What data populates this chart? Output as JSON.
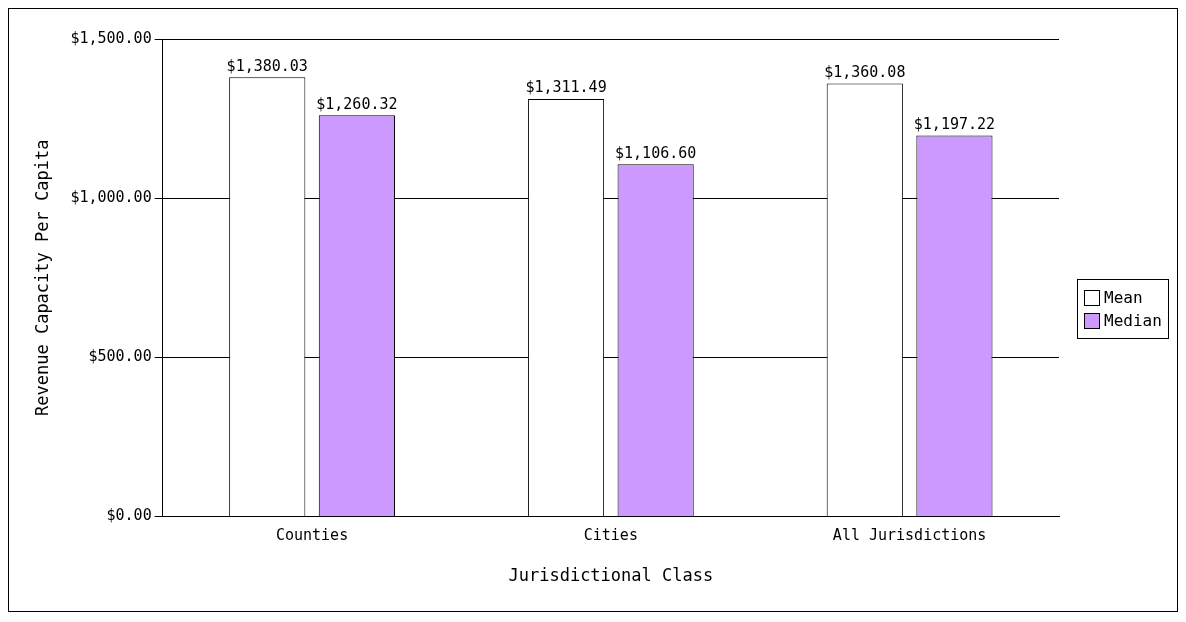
{
  "chart_data": {
    "type": "bar",
    "xlabel": "Jurisdictional Class",
    "ylabel": "Revenue Capacity Per Capita",
    "categories": [
      "Counties",
      "Cities",
      "All Jurisdictions"
    ],
    "series": [
      {
        "name": "Mean",
        "color": "#ffffff",
        "values": [
          1380.03,
          1311.49,
          1360.08
        ],
        "value_labels": [
          "$1,380.03",
          "$1,311.49",
          "$1,360.08"
        ]
      },
      {
        "name": "Median",
        "color": "#cc99ff",
        "values": [
          1260.32,
          1106.6,
          1197.22
        ],
        "value_labels": [
          "$1,260.32",
          "$1,106.60",
          "$1,197.22"
        ]
      }
    ],
    "ylim": [
      0,
      1500
    ],
    "yticks": [
      {
        "value": 0,
        "label": "$0.00"
      },
      {
        "value": 500,
        "label": "$500.00"
      },
      {
        "value": 1000,
        "label": "$1,000.00"
      },
      {
        "value": 1500,
        "label": "$1,500.00"
      }
    ],
    "grid": "y",
    "legend": "right"
  }
}
